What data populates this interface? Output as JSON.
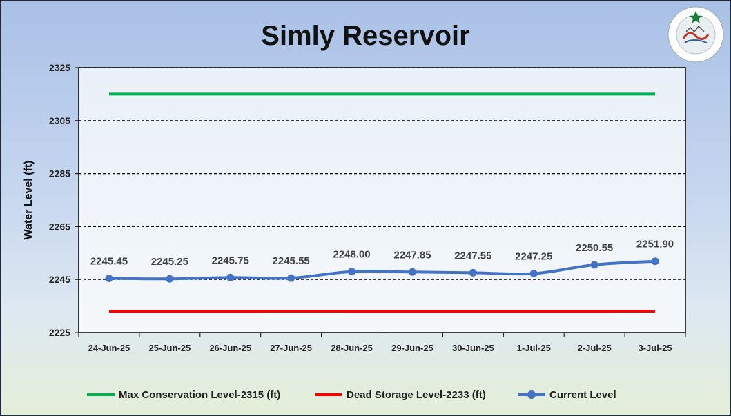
{
  "chart_data": {
    "type": "line",
    "title": "Simly Reservoir",
    "ylabel": "Water Level (ft)",
    "xlabel": "",
    "ylim": [
      2225,
      2325
    ],
    "yticks": [
      2225,
      2245,
      2265,
      2285,
      2305,
      2325
    ],
    "categories": [
      "24-Jun-25",
      "25-Jun-25",
      "26-Jun-25",
      "27-Jun-25",
      "28-Jun-25",
      "29-Jun-25",
      "30-Jun-25",
      "1-Jul-25",
      "2-Jul-25",
      "3-Jul-25"
    ],
    "grid": "horizontal dashed",
    "legend_position": "bottom",
    "series": [
      {
        "name": "Max Conservation Level-2315 (ft)",
        "color": "#00b050",
        "values": [
          2315,
          2315,
          2315,
          2315,
          2315,
          2315,
          2315,
          2315,
          2315,
          2315
        ]
      },
      {
        "name": "Dead Storage Level-2233 (ft)",
        "color": "#ff0000",
        "values": [
          2233,
          2233,
          2233,
          2233,
          2233,
          2233,
          2233,
          2233,
          2233,
          2233
        ]
      },
      {
        "name": "Current Level",
        "color": "#4472c4",
        "values": [
          2245.45,
          2245.25,
          2245.75,
          2245.55,
          2248.0,
          2247.85,
          2247.55,
          2247.25,
          2250.55,
          2251.9
        ]
      }
    ],
    "data_labels": [
      "2245.45",
      "2245.25",
      "2245.75",
      "2245.55",
      "2248.00",
      "2247.85",
      "2247.55",
      "2247.25",
      "2250.55",
      "2251.90"
    ]
  },
  "logo": {
    "text": "PAKISTAN METEOROLOGICAL DEPARTMENT"
  }
}
